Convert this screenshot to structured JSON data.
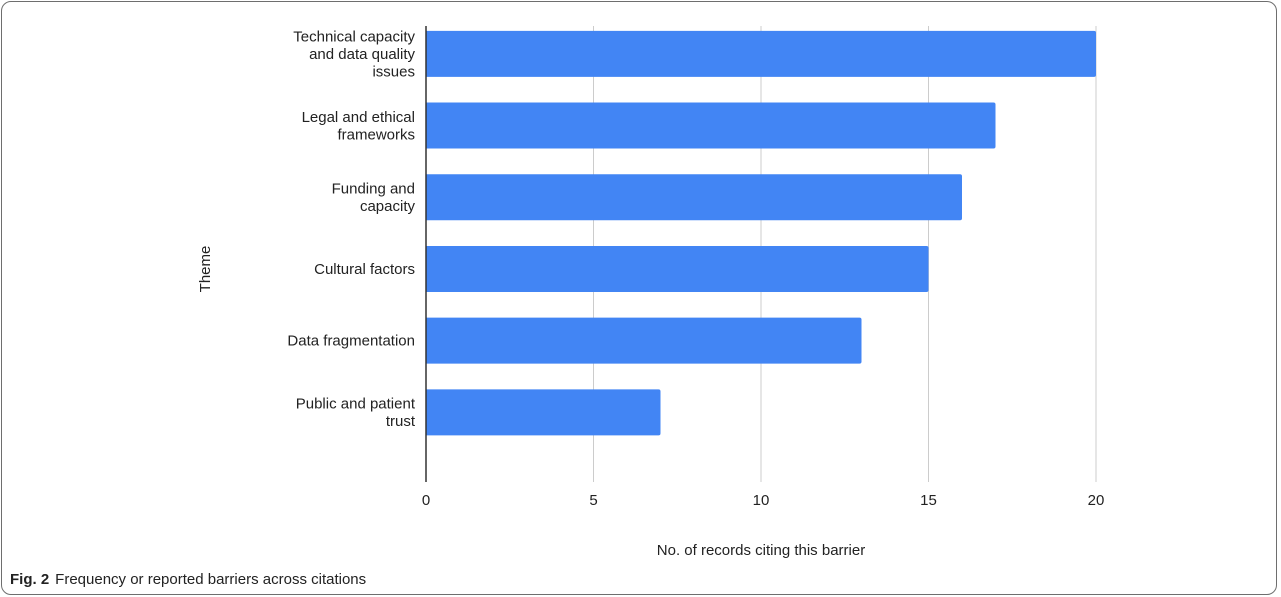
{
  "caption": {
    "label": "Fig. 2",
    "text": "Frequency or reported barriers across citations"
  },
  "chart_data": {
    "type": "bar",
    "orientation": "horizontal",
    "categories": [
      "Technical capacity and data quality issues",
      "Legal and ethical frameworks",
      "Funding and capacity",
      "Cultural factors",
      "Data fragmentation",
      "Public and patient trust"
    ],
    "category_lines": [
      [
        "Technical capacity",
        "and data quality",
        "issues"
      ],
      [
        "Legal and ethical",
        "frameworks"
      ],
      [
        "Funding and",
        "capacity"
      ],
      [
        "Cultural factors"
      ],
      [
        "Data fragmentation"
      ],
      [
        "Public and patient",
        "trust"
      ]
    ],
    "values": [
      20,
      17,
      16,
      15,
      13,
      7
    ],
    "xlabel": "No. of records citing this barrier",
    "ylabel": "Theme",
    "xlim": [
      0,
      20
    ],
    "xticks": [
      0,
      5,
      10,
      15,
      20
    ],
    "grid": true,
    "bar_color": "#4285f4"
  }
}
